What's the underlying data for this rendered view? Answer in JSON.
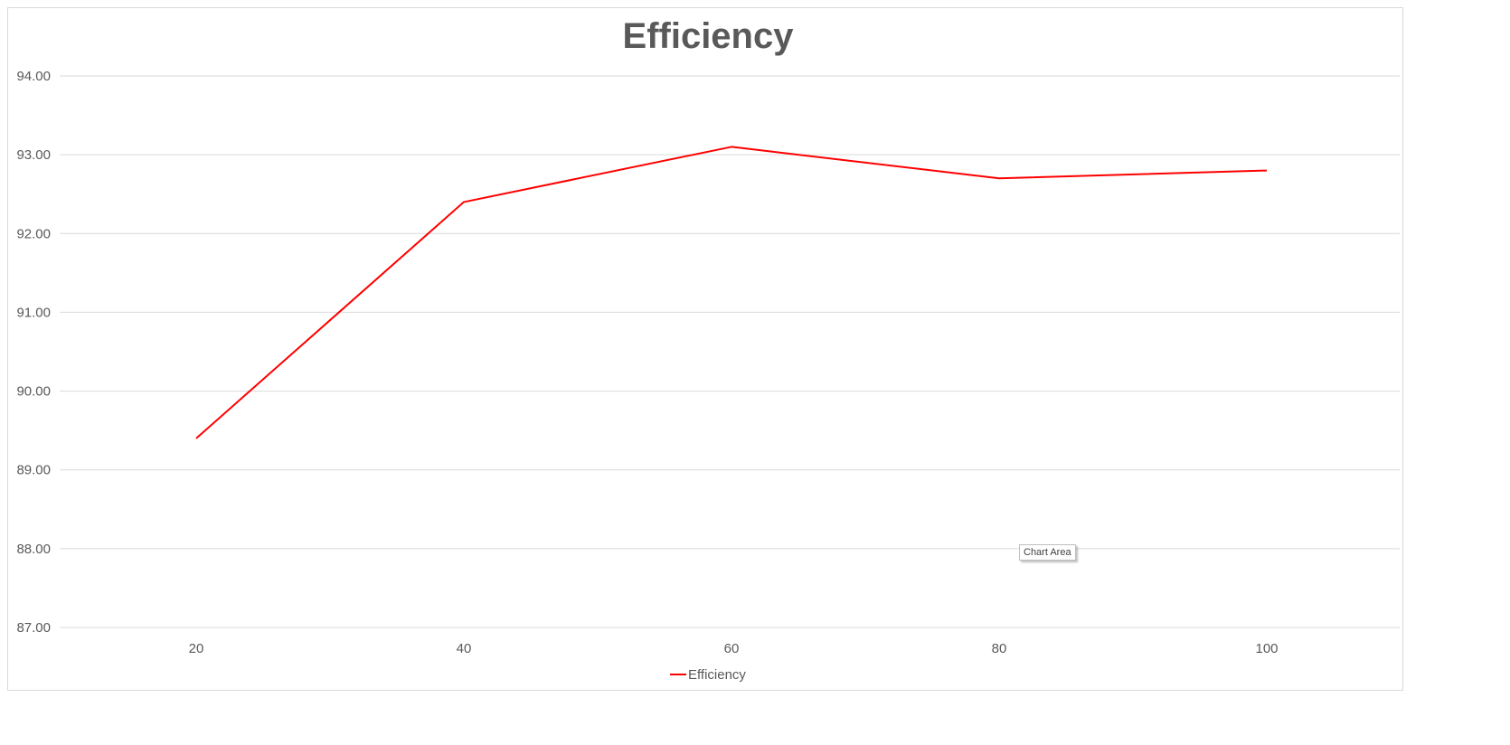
{
  "chart_data": {
    "type": "line",
    "title": "Efficiency",
    "xlabel": "",
    "ylabel": "",
    "categories": [
      "20",
      "40",
      "60",
      "80",
      "100"
    ],
    "series": [
      {
        "name": "Efficiency",
        "values": [
          89.4,
          92.4,
          93.1,
          92.7,
          92.8
        ],
        "color": "#ff0000"
      }
    ],
    "ylim": [
      87,
      94
    ],
    "y_ticks": [
      "87.00",
      "88.00",
      "89.00",
      "90.00",
      "91.00",
      "92.00",
      "93.00",
      "94.00"
    ],
    "grid": true,
    "legend_position": "bottom"
  },
  "tooltip": {
    "text": "Chart Area"
  }
}
